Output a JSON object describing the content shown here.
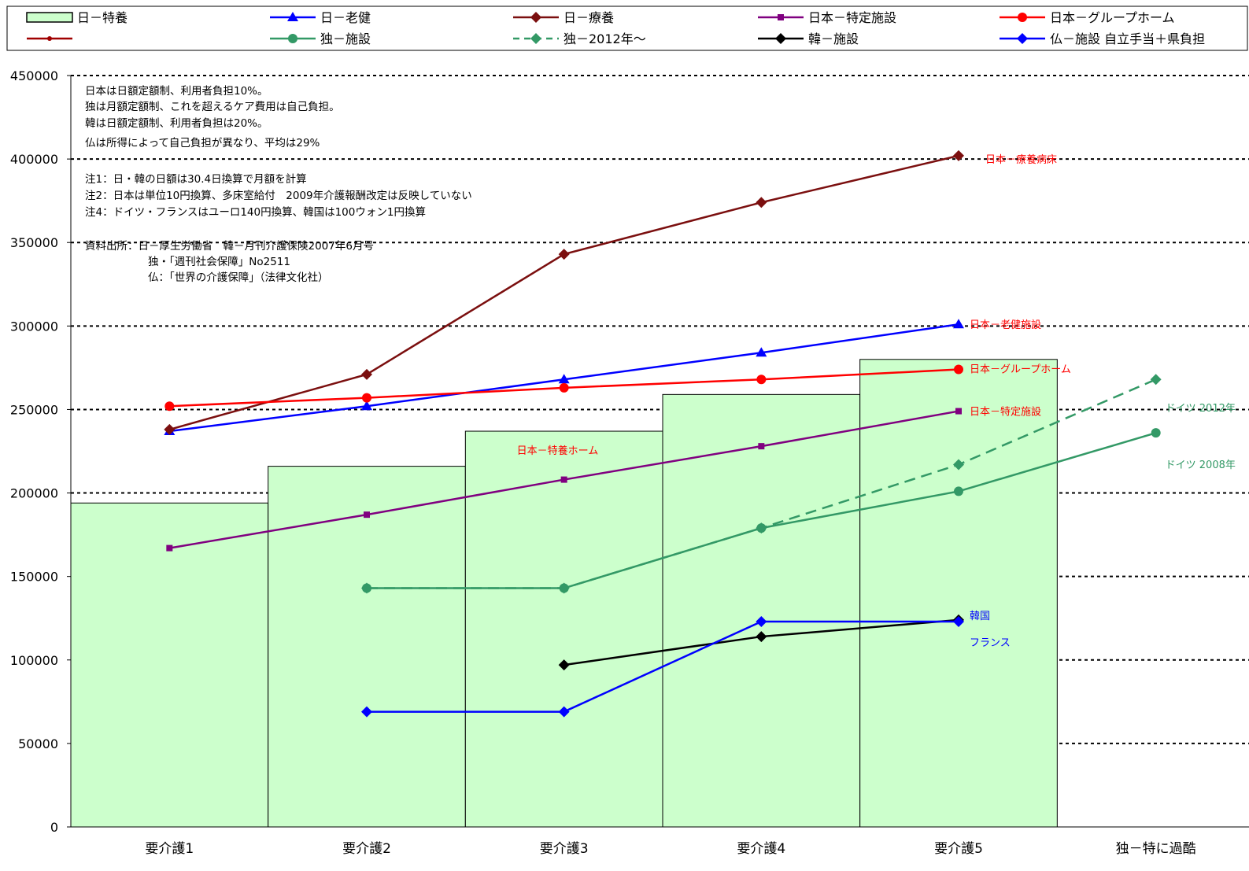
{
  "legend": [
    {
      "label": "日－特養",
      "color": "#000000",
      "marker": "box"
    },
    {
      "label": "日－老健",
      "color": "#0000FF",
      "marker": "triangle"
    },
    {
      "label": "日－療養",
      "color": "#7B0F0F",
      "marker": "diamond"
    },
    {
      "label": "日本－特定施設",
      "color": "#800080",
      "marker": "square"
    },
    {
      "label": "日本－グループホーム",
      "color": "#FF0000",
      "marker": "circle"
    },
    {
      "label": "",
      "color": "#A00000",
      "marker": "circle"
    },
    {
      "label": "独－施設",
      "color": "#339966",
      "marker": "circle"
    },
    {
      "label": "独－2012年～",
      "color": "#339966",
      "marker": "diamond",
      "dashed": true
    },
    {
      "label": "韓－施設",
      "color": "#000000",
      "marker": "diamond"
    },
    {
      "label": "仏－施設 自立手当＋県負担",
      "color": "#0000FF",
      "marker": "diamond"
    }
  ],
  "notes": {
    "block1": [
      "日本は日額定額制、利用者負担10%。",
      "独は月額定額制、これを超えるケア費用は自己負担。",
      "韓は日額定額制、利用者負担は20%。",
      "仏は所得によって自己負担が異なり、平均は29%"
    ],
    "block2": [
      "注1：日・韓の日額は30.4日換算で月額を計算",
      "注2：日本は単位10円換算、多床室給付　2009年介護報酬改定は反映していない",
      "注4：ドイツ・フランスはユーロ140円換算、韓国は100ウォン1円換算"
    ],
    "source": [
      "資料出所：日－厚生労働省　韓－月刊介護保険2007年6月号",
      "独・「週刊社会保障」No2511",
      "仏：「世界の介護保障」（法律文化社）"
    ]
  },
  "chart_data": {
    "type": "bar",
    "categories": [
      "要介護1",
      "要介護2",
      "要介護3",
      "要介護4",
      "要介護5",
      "独－特に過酷"
    ],
    "ylim": [
      0,
      450000
    ],
    "yticks": [
      0,
      50000,
      100000,
      150000,
      200000,
      250000,
      300000,
      350000,
      400000,
      450000
    ],
    "grid": "dotted horizontal",
    "bar_color": "#CCFFCC",
    "series": [
      {
        "name": "日－特養",
        "kind": "bar",
        "values": [
          194000,
          216000,
          237000,
          259000,
          280000,
          null
        ]
      },
      {
        "name": "日－老健",
        "kind": "line",
        "color": "#0000FF",
        "marker": "triangle",
        "values": [
          237000,
          252000,
          268000,
          284000,
          301000,
          null
        ]
      },
      {
        "name": "日－療養",
        "kind": "line",
        "color": "#7B0F0F",
        "marker": "diamond",
        "values": [
          238000,
          271000,
          343000,
          374000,
          402000,
          null
        ]
      },
      {
        "name": "日本－特定施設",
        "kind": "line",
        "color": "#800080",
        "marker": "square",
        "values": [
          167000,
          187000,
          208000,
          228000,
          249000,
          null
        ]
      },
      {
        "name": "日本－グループホーム",
        "kind": "line",
        "color": "#FF0000",
        "marker": "circle",
        "values": [
          252000,
          257000,
          263000,
          268000,
          274000,
          null
        ]
      },
      {
        "name": "独－施設",
        "kind": "line",
        "color": "#339966",
        "marker": "circle",
        "values": [
          null,
          143000,
          143000,
          179000,
          201000,
          236000
        ]
      },
      {
        "name": "独－2012年～",
        "kind": "line",
        "color": "#339966",
        "marker": "diamond",
        "dashed": true,
        "values": [
          null,
          143000,
          143000,
          179000,
          217000,
          268000
        ]
      },
      {
        "name": "韓－施設",
        "kind": "line",
        "color": "#000000",
        "marker": "diamond",
        "values": [
          null,
          null,
          97000,
          114000,
          124000,
          null
        ]
      },
      {
        "name": "仏－施設 自立手当＋県負担",
        "kind": "line",
        "color": "#0000FF",
        "marker": "diamond",
        "values": [
          null,
          69000,
          69000,
          123000,
          123000,
          null
        ]
      }
    ],
    "annotations": [
      {
        "text": "日本－療養病床",
        "color": "#FF0000",
        "cat": 4,
        "y": 402000,
        "dx": 34,
        "dy": 4
      },
      {
        "text": "日本－老健施設",
        "color": "#FF0000",
        "cat": 4,
        "y": 301000,
        "dx": 14,
        "dy": 0
      },
      {
        "text": "日本－グループホーム",
        "color": "#FF0000",
        "cat": 4,
        "y": 274000,
        "dx": 14,
        "dy": -1
      },
      {
        "text": "日本－特定施設",
        "color": "#FF0000",
        "cat": 4,
        "y": 249000,
        "dx": 14,
        "dy": 0
      },
      {
        "text": "日本－特養ホーム",
        "color": "#FF0000",
        "cat": 2,
        "y": 237000,
        "dx": -60,
        "dy": 24
      },
      {
        "text": "ドイツ 2012年",
        "color": "#339966",
        "cat": 5,
        "y": 268000,
        "dx": 12,
        "dy": 36
      },
      {
        "text": "ドイツ 2008年",
        "color": "#339966",
        "cat": 5,
        "y": 236000,
        "dx": 12,
        "dy": 40
      },
      {
        "text": "韓国",
        "color": "#0000FF",
        "cat": 4,
        "y": 124000,
        "dx": 14,
        "dy": -6
      },
      {
        "text": "フランス",
        "color": "#0000FF",
        "cat": 4,
        "y": 123000,
        "dx": 14,
        "dy": 26
      }
    ]
  }
}
